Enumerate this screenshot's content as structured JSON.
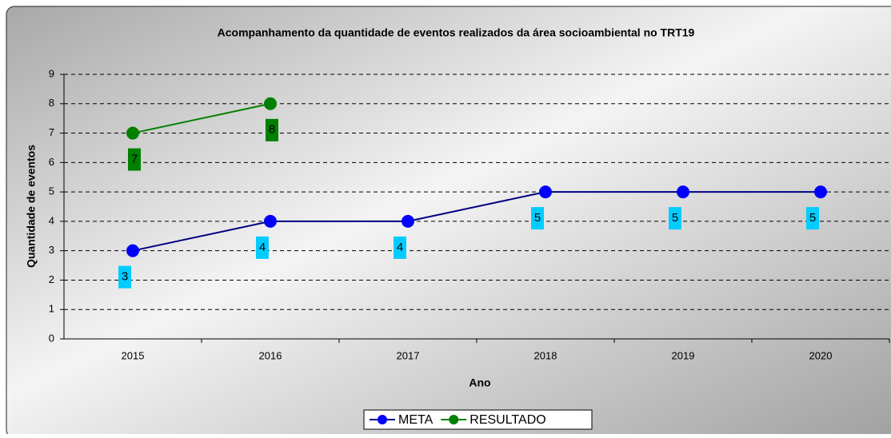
{
  "chart_data": {
    "type": "line",
    "title": "Acompanhamento da quantidade de eventos realizados da área socioambiental no TRT19",
    "x_label": "Ano",
    "y_label": "Quantidade de eventos",
    "categories": [
      "2015",
      "2016",
      "2017",
      "2018",
      "2019",
      "2020"
    ],
    "series": [
      {
        "name": "META",
        "color": "#000080",
        "marker_color": "#0000ff",
        "label_color": "#00ccff",
        "values": [
          3,
          4,
          4,
          5,
          5,
          5
        ]
      },
      {
        "name": "RESULTADO",
        "color": "#008000",
        "marker_color": "#008000",
        "label_color": "#008000",
        "values": [
          7,
          8,
          null,
          null,
          null,
          null
        ]
      }
    ],
    "ylim": [
      0,
      9
    ],
    "yticks": [
      0,
      1,
      2,
      3,
      4,
      5,
      6,
      7,
      8,
      9
    ],
    "grid": true,
    "legend": "bottom"
  }
}
